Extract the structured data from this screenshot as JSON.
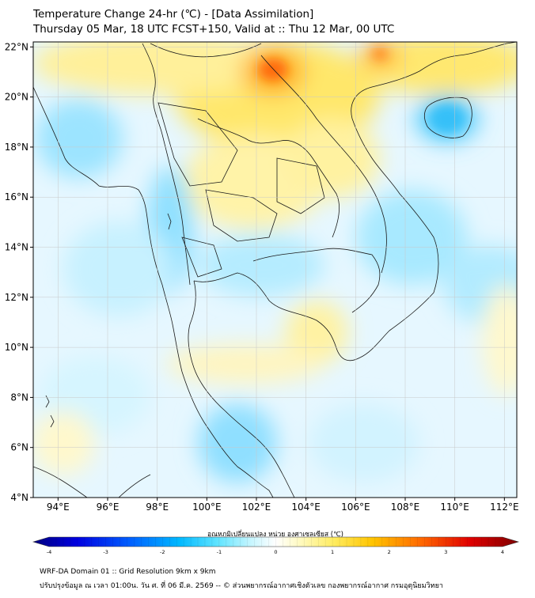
{
  "header": {
    "title_line1": "Temperature Change 24-hr (℃) - [Data Assimilation]",
    "title_line2": "Thursday 05 Mar, 18 UTC FCST+150, Valid at :: Thu 12 Mar, 00 UTC"
  },
  "map": {
    "region": "Thailand and mainland Southeast Asia",
    "variable": "24-hr temperature change",
    "lat_ticks": [
      "22°N",
      "20°N",
      "18°N",
      "16°N",
      "14°N",
      "12°N",
      "10°N",
      "8°N",
      "6°N",
      "4°N"
    ],
    "lon_ticks": [
      "94°E",
      "96°E",
      "98°E",
      "100°E",
      "102°E",
      "104°E",
      "106°E",
      "108°E",
      "110°E",
      "112°E"
    ],
    "lat_range": [
      4,
      22.2
    ],
    "lon_range": [
      93,
      112.5
    ],
    "gridlines": true
  },
  "colorbar": {
    "title": "อุณหภูมิเปลี่ยนแปลง หน่วย องศาเซลเซียส (℃)",
    "tick_labels": [
      "-4",
      "-3",
      "-2",
      "-1",
      "0",
      "1",
      "2",
      "3",
      "4"
    ],
    "range": [
      -4,
      4
    ],
    "colors": [
      "#00007f",
      "#0000dd",
      "#0050ff",
      "#00b0ff",
      "#40e0ff",
      "#b8f4ff",
      "#ffffff",
      "#fff8a0",
      "#ffe040",
      "#ffb000",
      "#ff5000",
      "#dd0000",
      "#7f0000"
    ]
  },
  "footer": {
    "line1": "WRF-DA Domain 01 :: Grid Resolution 9km x 9km",
    "line2": "ปรับปรุงข้อมูล ณ เวลา 01:00น. วัน ศ. ที่ 06 มี.ค. 2569 -- © ส่วนพยากรณ์อากาศเชิงตัวเลข กองพยากรณ์อากาศ กรมอุตุนิยมวิทยา"
  }
}
